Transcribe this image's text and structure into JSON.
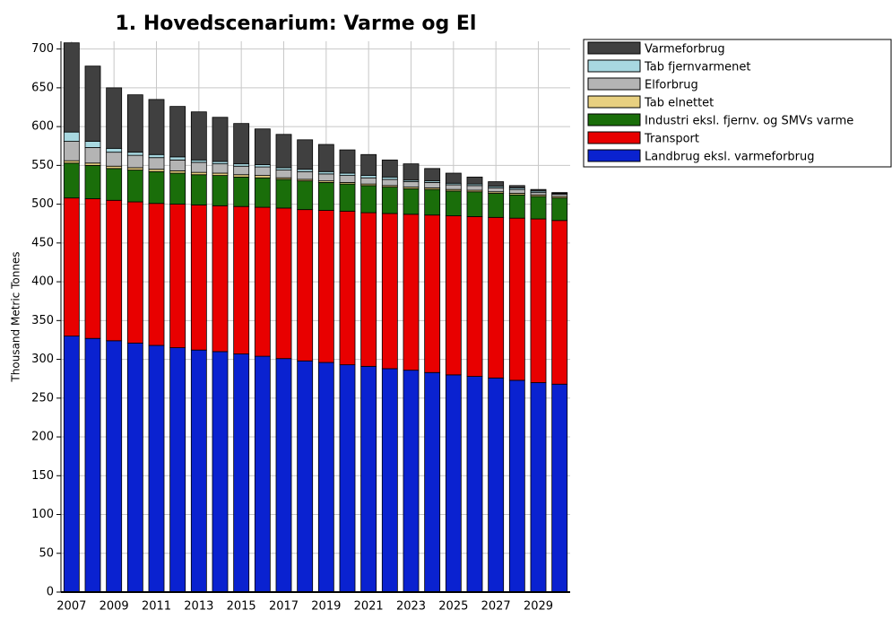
{
  "chart_data": {
    "type": "stacked-bar",
    "title": "1. Hovedscenarium: Varme og El",
    "y_label": "Thousand Metric Tonnes",
    "categories": [
      "2007",
      null,
      "2009",
      null,
      "2011",
      null,
      "2013",
      null,
      "2015",
      null,
      "2017",
      null,
      "2019",
      null,
      "2021",
      null,
      "2023",
      null,
      "2025",
      null,
      "2027",
      null,
      "2029",
      null
    ],
    "ylim": [
      0,
      710
    ],
    "yticks": [
      0,
      50,
      100,
      150,
      200,
      250,
      300,
      350,
      400,
      450,
      500,
      550,
      600,
      650,
      700
    ],
    "grid": true,
    "legend": "right",
    "series": [
      {
        "name": "Varmeforbrug",
        "color": "#404040",
        "values": [
          115,
          97,
          78,
          74,
          71,
          65,
          62,
          57,
          52,
          46,
          43,
          38,
          35,
          30,
          27,
          22,
          21,
          16,
          13,
          9,
          6,
          3,
          2,
          1
        ]
      },
      {
        "name": "Tab fjernvarmenet",
        "color": "#a8d8e0",
        "values": [
          12,
          8,
          5,
          4,
          4,
          4,
          3,
          3,
          3,
          3,
          3,
          3,
          3,
          3,
          3,
          3,
          2,
          2,
          2,
          2,
          2,
          2,
          2,
          1
        ]
      },
      {
        "name": "Elforbrug",
        "color": "#b4b4b4",
        "values": [
          25,
          20,
          18,
          16,
          15,
          14,
          13,
          12,
          11,
          11,
          10,
          10,
          9,
          9,
          8,
          8,
          7,
          7,
          6,
          6,
          5,
          5,
          3,
          3
        ]
      },
      {
        "name": "Tab elnettet",
        "color": "#e8d080",
        "values": [
          3,
          3,
          3,
          3,
          3,
          3,
          3,
          3,
          3,
          3,
          2,
          2,
          2,
          2,
          2,
          2,
          2,
          2,
          2,
          2,
          2,
          2,
          2,
          2
        ]
      },
      {
        "name": "Industri eksl. fjernv. og SMVs varme",
        "color": "#1a6e0a",
        "values": [
          45,
          43,
          41,
          41,
          41,
          40,
          39,
          39,
          38,
          38,
          37,
          37,
          36,
          35,
          35,
          34,
          33,
          33,
          32,
          32,
          31,
          30,
          29,
          29
        ]
      },
      {
        "name": "Transport",
        "color": "#e80000",
        "values": [
          178,
          180,
          181,
          182,
          183,
          185,
          187,
          188,
          190,
          192,
          194,
          195,
          196,
          198,
          198,
          200,
          201,
          203,
          205,
          206,
          207,
          209,
          211,
          211
        ]
      },
      {
        "name": "Landbrug eksl. varmeforbrug",
        "color": "#0a22d0",
        "values": [
          330,
          327,
          324,
          321,
          318,
          315,
          312,
          310,
          307,
          304,
          301,
          298,
          296,
          293,
          291,
          288,
          286,
          283,
          280,
          278,
          276,
          273,
          270,
          268
        ]
      }
    ]
  }
}
